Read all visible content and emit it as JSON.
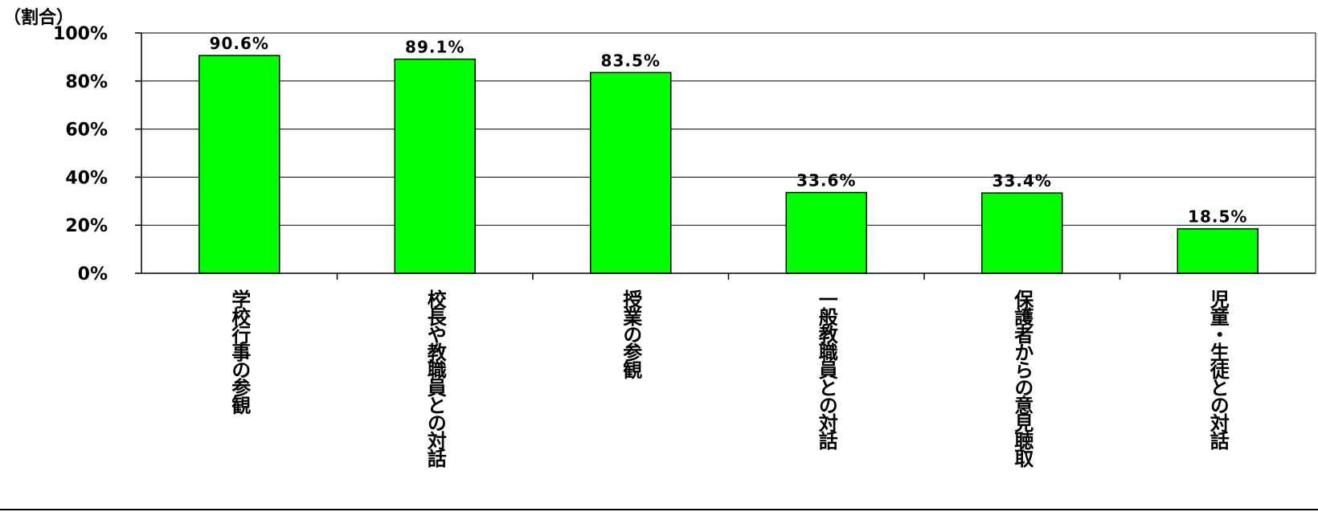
{
  "chart_data": {
    "type": "bar",
    "unit_label": "（割合）",
    "categories": [
      "学校行事の参観",
      "校長や教職員との対話",
      "授業の参観",
      "一般教職員との対話",
      "保護者からの意見聴取",
      "児童・生徒との対話"
    ],
    "values": [
      90.6,
      89.1,
      83.5,
      33.6,
      33.4,
      18.5
    ],
    "value_labels": [
      "90.6%",
      "89.1%",
      "83.5%",
      "33.6%",
      "33.4%",
      "18.5%"
    ],
    "yticks": [
      "0%",
      "20%",
      "40%",
      "60%",
      "80%",
      "100%"
    ],
    "ylim": [
      0,
      100
    ],
    "bar_color": "#00ff00",
    "grid": true,
    "legend": false
  }
}
